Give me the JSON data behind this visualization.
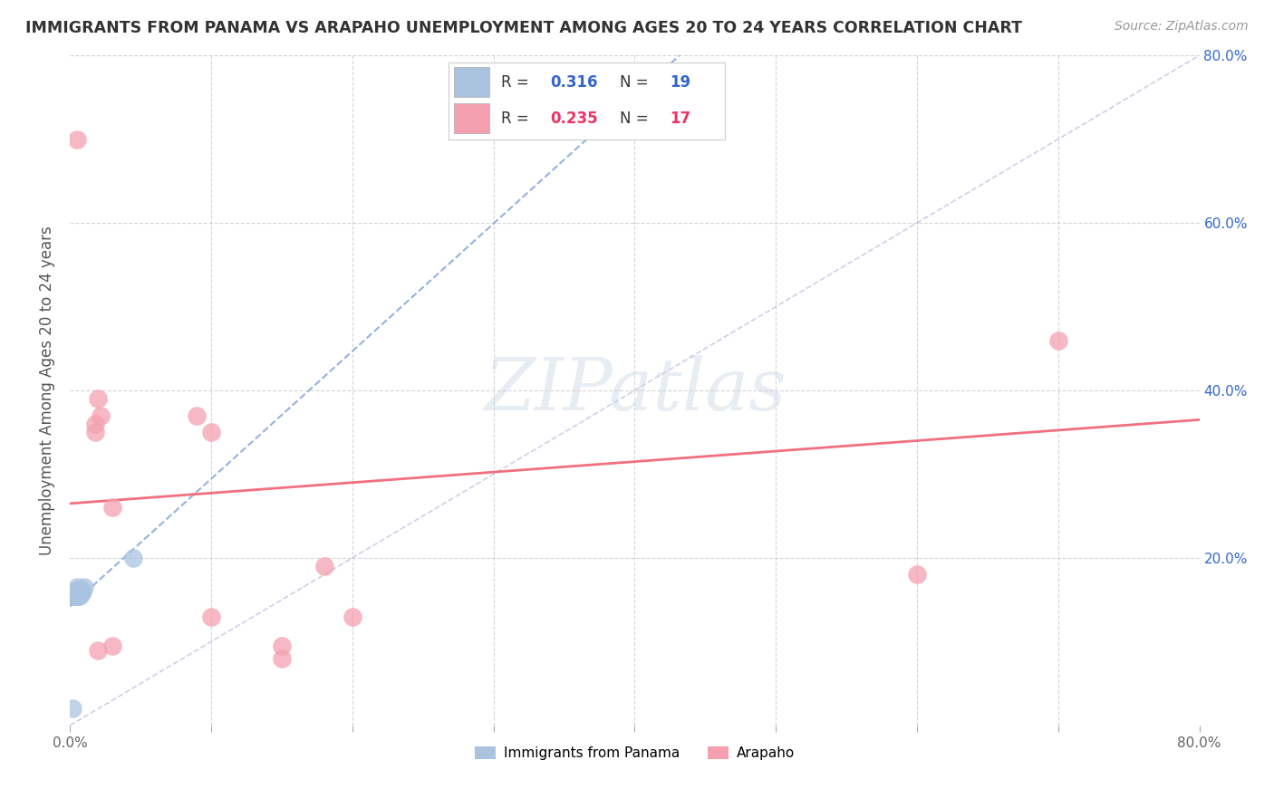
{
  "title": "IMMIGRANTS FROM PANAMA VS ARAPAHO UNEMPLOYMENT AMONG AGES 20 TO 24 YEARS CORRELATION CHART",
  "source": "Source: ZipAtlas.com",
  "ylabel": "Unemployment Among Ages 20 to 24 years",
  "xlim": [
    0.0,
    0.8
  ],
  "ylim": [
    0.0,
    0.8
  ],
  "panama_scatter_x": [
    0.002,
    0.003,
    0.003,
    0.004,
    0.004,
    0.005,
    0.005,
    0.005,
    0.006,
    0.006,
    0.006,
    0.007,
    0.007,
    0.008,
    0.008,
    0.009,
    0.01,
    0.045,
    0.002
  ],
  "panama_scatter_y": [
    0.155,
    0.155,
    0.16,
    0.155,
    0.158,
    0.155,
    0.158,
    0.165,
    0.155,
    0.158,
    0.162,
    0.155,
    0.162,
    0.158,
    0.162,
    0.16,
    0.165,
    0.2,
    0.02
  ],
  "arapaho_scatter_x": [
    0.005,
    0.018,
    0.018,
    0.02,
    0.022,
    0.03,
    0.09,
    0.1,
    0.15,
    0.15,
    0.18,
    0.6,
    0.7,
    0.1,
    0.2,
    0.02,
    0.03
  ],
  "arapaho_scatter_y": [
    0.7,
    0.36,
    0.35,
    0.39,
    0.37,
    0.26,
    0.37,
    0.35,
    0.095,
    0.08,
    0.19,
    0.18,
    0.46,
    0.13,
    0.13,
    0.09,
    0.095
  ],
  "panama_R": 0.316,
  "panama_N": 19,
  "arapaho_R": 0.235,
  "arapaho_N": 17,
  "panama_color": "#aac4e0",
  "arapaho_color": "#f4a0b0",
  "panama_line_color": "#88aadd",
  "arapaho_line_color": "#f06070",
  "watermark_text": "ZIPatlas",
  "legend_R_color": "#3366cc",
  "legend_R2_color": "#ee3366",
  "legend_N_color": "#3366cc",
  "legend_N2_color": "#ee3366"
}
